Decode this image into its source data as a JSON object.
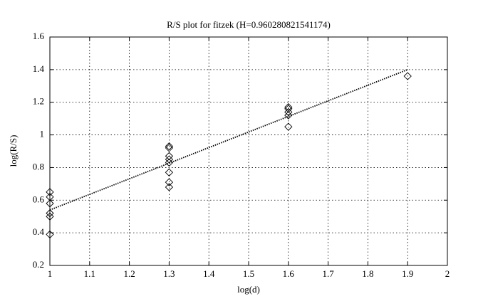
{
  "chart_data": {
    "type": "scatter",
    "title": "R/S plot for fitzek (H=0.960280821541174)",
    "x_label": "log(d)",
    "y_label": "log(R/S)",
    "xlim": [
      1,
      2
    ],
    "ylim": [
      0.2,
      1.6
    ],
    "xticks": [
      1,
      1.1,
      1.2,
      1.3,
      1.4,
      1.5,
      1.6,
      1.7,
      1.8,
      1.9,
      2
    ],
    "yticks": [
      0.2,
      0.4,
      0.6,
      0.8,
      1,
      1.2,
      1.4,
      1.6
    ],
    "grid": true,
    "series": [
      {
        "style": "marker",
        "color": "#000000",
        "x": [
          1,
          1,
          1,
          1,
          1,
          1,
          1.3,
          1.3,
          1.3,
          1.3,
          1.3,
          1.3,
          1.3,
          1.3,
          1.6,
          1.6,
          1.6,
          1.6,
          1.6,
          1.9
        ],
        "values": [
          0.65,
          0.62,
          0.58,
          0.52,
          0.5,
          0.39,
          0.93,
          0.92,
          0.87,
          0.85,
          0.83,
          0.77,
          0.71,
          0.68,
          1.17,
          1.16,
          1.14,
          1.12,
          1.05,
          1.36
        ]
      },
      {
        "style": "dotted-line",
        "color": "#000000",
        "x": [
          1,
          1.9
        ],
        "values": [
          0.54,
          1.4
        ]
      }
    ]
  }
}
